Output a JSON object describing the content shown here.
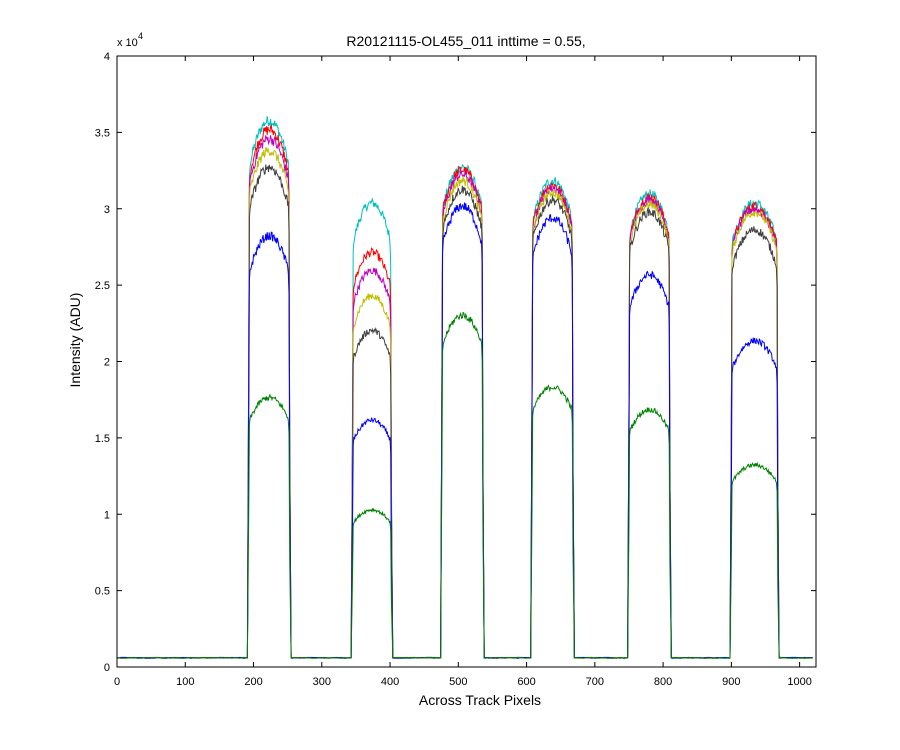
{
  "chart_data": {
    "type": "line",
    "title": "R20121115-OL455_011 inttime = 0.55,",
    "xlabel": "Across Track Pixels",
    "ylabel": "Intensity (ADU)",
    "y_exponent_label": "x 10",
    "y_exponent_power": "4",
    "xlim": [
      0,
      1024
    ],
    "ylim": [
      0,
      4
    ],
    "y_multiplier": 10000,
    "xticks": [
      0,
      100,
      200,
      300,
      400,
      500,
      600,
      700,
      800,
      900,
      1000
    ],
    "yticks": [
      0,
      0.5,
      1,
      1.5,
      2,
      2.5,
      3,
      3.5,
      4
    ],
    "ytick_labels": [
      "0",
      "0.5",
      "1",
      "1.5",
      "2",
      "2.5",
      "3",
      "3.5",
      "4"
    ],
    "grid": false,
    "baseline": 0.06,
    "blocks": [
      {
        "start": 193,
        "end": 253
      },
      {
        "start": 345,
        "end": 402
      },
      {
        "start": 476,
        "end": 536
      },
      {
        "start": 608,
        "end": 668
      },
      {
        "start": 750,
        "end": 810
      },
      {
        "start": 900,
        "end": 968
      }
    ],
    "series": [
      {
        "color": "#00bfbf",
        "levels": [
          3.65,
          3.1,
          3.34,
          3.25,
          3.16,
          3.1
        ]
      },
      {
        "color": "#ff0000",
        "levels": [
          3.59,
          2.77,
          3.32,
          3.22,
          3.14,
          3.08
        ]
      },
      {
        "color": "#bf00bf",
        "levels": [
          3.53,
          2.65,
          3.29,
          3.2,
          3.12,
          3.06
        ]
      },
      {
        "color": "#bfbf00",
        "levels": [
          3.45,
          2.48,
          3.25,
          3.17,
          3.09,
          3.04
        ]
      },
      {
        "color": "#404040",
        "levels": [
          3.34,
          2.25,
          3.19,
          3.12,
          3.04,
          2.92
        ]
      },
      {
        "color": "#0000ff",
        "levels": [
          2.88,
          1.65,
          3.08,
          3.0,
          2.62,
          2.18
        ]
      },
      {
        "color": "#008000",
        "levels": [
          1.8,
          1.05,
          2.35,
          1.87,
          1.72,
          1.35
        ]
      }
    ]
  }
}
